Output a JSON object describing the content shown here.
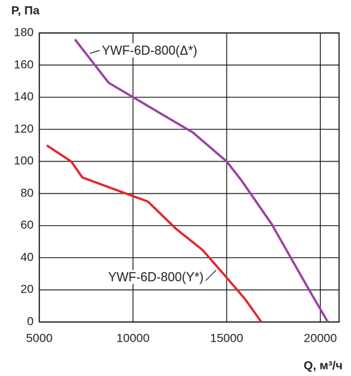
{
  "chart_data": {
    "type": "line",
    "y_label": "P, Па",
    "x_label": "Q, м³/ч",
    "series": [
      {
        "name": "YWF-6D-800(Δ*)",
        "color": "#9c3fa3",
        "x": [
          6900,
          8700,
          10000,
          13200,
          15000,
          15800,
          17400,
          19400,
          20400
        ],
        "values": [
          176,
          149,
          140,
          118,
          100,
          88,
          61,
          20,
          0
        ]
      },
      {
        "name": "YWF-6D-800(Y*)",
        "color": "#e0262a",
        "x": [
          5400,
          6700,
          7300,
          10800,
          12300,
          13700,
          14900,
          16000,
          16850
        ],
        "values": [
          110,
          100,
          90,
          75,
          58,
          45,
          29,
          14,
          0
        ]
      }
    ],
    "xlim": [
      5000,
      21000
    ],
    "ylim": [
      0,
      180
    ],
    "xticks": [
      5000,
      10000,
      15000,
      20000
    ],
    "yticks": [
      0,
      20,
      40,
      60,
      80,
      100,
      120,
      140,
      160,
      180
    ],
    "grid": true
  }
}
